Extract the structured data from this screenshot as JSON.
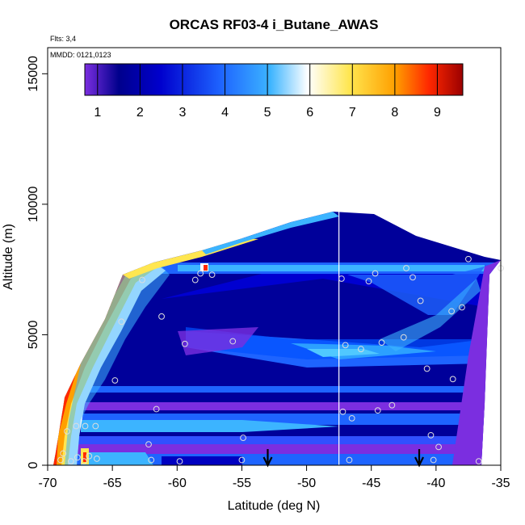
{
  "chart_data": {
    "type": "heatmap",
    "title": "ORCAS RF03-4 i_Butane_AWAS",
    "flights_note": "Flts: 3,4",
    "date_note": "MMDD: 0121,0123",
    "xlabel": "Latitude (deg N)",
    "ylabel": "Altitude (m)",
    "xlim": [
      -70,
      -35
    ],
    "ylim": [
      0,
      16000
    ],
    "x_ticks": [
      -70,
      -65,
      -60,
      -55,
      -50,
      -45,
      -40,
      -35
    ],
    "x_tick_labels": [
      "-70",
      "-65",
      "-60",
      "-55",
      "-50",
      "-45",
      "-40",
      "-35"
    ],
    "y_ticks": [
      0,
      5000,
      10000,
      15000
    ],
    "y_tick_labels": [
      "0",
      "5000",
      "10000",
      "15000"
    ],
    "colorbar": {
      "min": 0.7,
      "max": 9.6,
      "ticks": [
        1,
        2,
        3,
        4,
        5,
        6,
        7,
        8,
        9
      ],
      "tick_labels": [
        "1",
        "2",
        "3",
        "4",
        "5",
        "6",
        "7",
        "8",
        "9"
      ],
      "colors": [
        "#7b2ee0",
        "#00008c",
        "#0000cd",
        "#1e64ff",
        "#3cb4ff",
        "#ffffff",
        "#ffe650",
        "#ffa000",
        "#ff2800",
        "#9b0000"
      ]
    },
    "vertical_line_x": -47.5,
    "arrows_x": [
      -53,
      -41.3
    ],
    "sample_points": [
      {
        "x": -69,
        "y": 200
      },
      {
        "x": -68.8,
        "y": 450
      },
      {
        "x": -68.2,
        "y": 150
      },
      {
        "x": -67.7,
        "y": 300
      },
      {
        "x": -67.2,
        "y": 150
      },
      {
        "x": -66.8,
        "y": 350
      },
      {
        "x": -66.2,
        "y": 250
      },
      {
        "x": -68.5,
        "y": 1300
      },
      {
        "x": -67.8,
        "y": 1500
      },
      {
        "x": -67.1,
        "y": 1500
      },
      {
        "x": -66.3,
        "y": 1500
      },
      {
        "x": -62.2,
        "y": 800
      },
      {
        "x": -62,
        "y": 200
      },
      {
        "x": -59.8,
        "y": 150
      },
      {
        "x": -55,
        "y": 200
      },
      {
        "x": -54.9,
        "y": 1050
      },
      {
        "x": -61.6,
        "y": 2150
      },
      {
        "x": -64.8,
        "y": 3250
      },
      {
        "x": -64.3,
        "y": 5500
      },
      {
        "x": -61.2,
        "y": 5700
      },
      {
        "x": -59.4,
        "y": 4650
      },
      {
        "x": -55.7,
        "y": 4750
      },
      {
        "x": -58.6,
        "y": 7100
      },
      {
        "x": -58.2,
        "y": 7350
      },
      {
        "x": -57.3,
        "y": 7300
      },
      {
        "x": -62.7,
        "y": 7100
      },
      {
        "x": -47.3,
        "y": 7150
      },
      {
        "x": -45.2,
        "y": 7050
      },
      {
        "x": -44.7,
        "y": 7350
      },
      {
        "x": -42.3,
        "y": 7550
      },
      {
        "x": -41.8,
        "y": 7200
      },
      {
        "x": -41.2,
        "y": 6300
      },
      {
        "x": -38.8,
        "y": 5900
      },
      {
        "x": -38,
        "y": 6050
      },
      {
        "x": -37.5,
        "y": 7900
      },
      {
        "x": -35,
        "y": 7550
      },
      {
        "x": -47,
        "y": 4600
      },
      {
        "x": -45.8,
        "y": 4450
      },
      {
        "x": -44.2,
        "y": 4700
      },
      {
        "x": -42.5,
        "y": 4900
      },
      {
        "x": -40.7,
        "y": 3700
      },
      {
        "x": -38.7,
        "y": 3300
      },
      {
        "x": -47.2,
        "y": 2050
      },
      {
        "x": -46.5,
        "y": 1800
      },
      {
        "x": -44.5,
        "y": 2100
      },
      {
        "x": -43.4,
        "y": 2300
      },
      {
        "x": -40.4,
        "y": 1150
      },
      {
        "x": -39.8,
        "y": 700
      },
      {
        "x": -40.2,
        "y": 200
      },
      {
        "x": -46.7,
        "y": 200
      },
      {
        "x": -36.7,
        "y": 150
      }
    ]
  }
}
